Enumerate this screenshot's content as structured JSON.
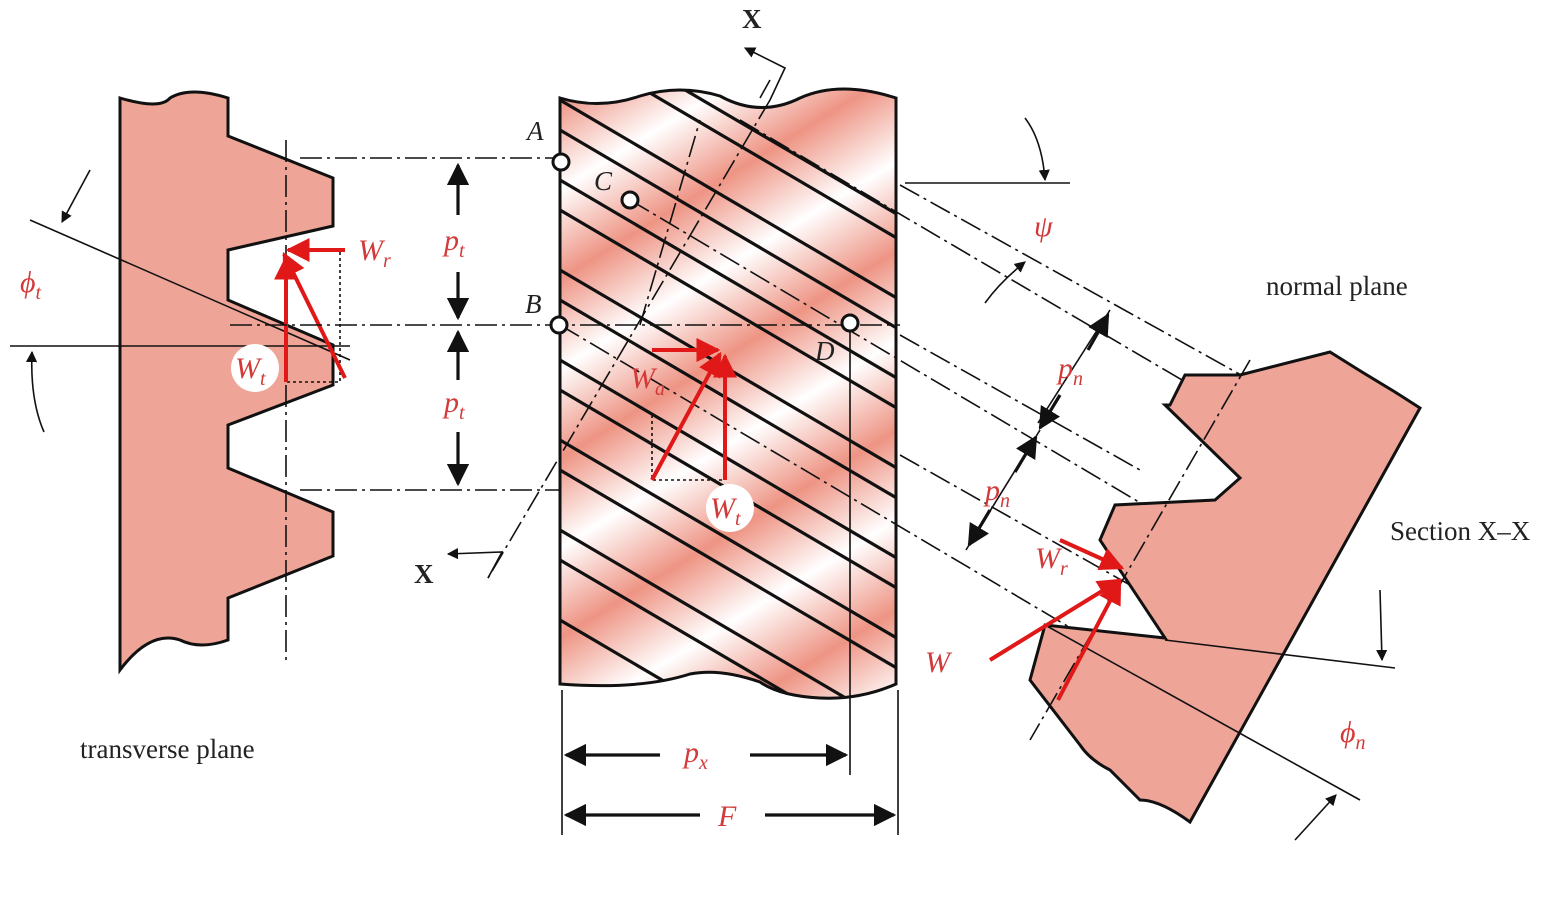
{
  "labels": {
    "transverse_plane": "transverse plane",
    "normal_plane": "normal plane",
    "section": "Section X–X",
    "x_top": "X",
    "x_bottom": "X"
  },
  "points": {
    "A": "A",
    "B": "B",
    "C": "C",
    "D": "D"
  },
  "symbols": {
    "pt_upper": "p",
    "pt_upper_sub": "t",
    "pt_lower": "p",
    "pt_lower_sub": "t",
    "pn_upper": "p",
    "pn_upper_sub": "n",
    "pn_lower": "p",
    "pn_lower_sub": "n",
    "px": "p",
    "px_sub": "x",
    "F": "F",
    "psi": "ψ",
    "phi_t": "ϕ",
    "phi_t_sub": "t",
    "phi_n": "ϕ",
    "phi_n_sub": "n"
  },
  "forces": {
    "Wr_left": "W",
    "Wr_left_sub": "r",
    "Wt_left": "W",
    "Wt_left_sub": "t",
    "Wa": "W",
    "Wa_sub": "a",
    "Wt_center": "W",
    "Wt_center_sub": "t",
    "Wr_right": "W",
    "Wr_right_sub": "r",
    "W": "W"
  },
  "colors": {
    "gear_fill": "#efa498",
    "force": "#e01818",
    "symbol_text": "#d23a3a",
    "outline": "#111111"
  }
}
